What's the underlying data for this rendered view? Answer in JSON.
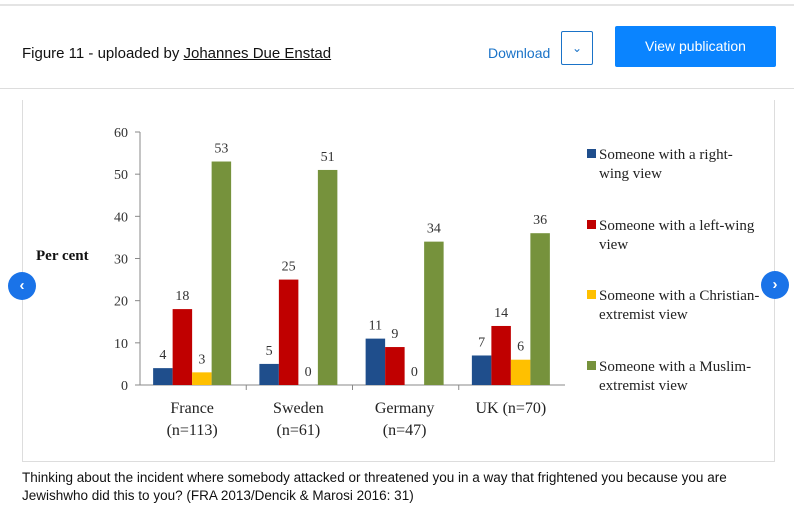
{
  "header": {
    "title_prefix": "Figure 11 - uploaded by ",
    "author": "Johannes Due Enstad",
    "download": "Download",
    "dropdown_icon": "chevron-down-icon",
    "view_publication": "View publication"
  },
  "nav": {
    "prev": "‹",
    "next": "›"
  },
  "caption": "Thinking about the incident where somebody attacked or threatened you in a way that frightened you because you are Jewishwho did this to you? (FRA 2013/Dencik & Marosi 2016: 31)",
  "chart_data": {
    "type": "bar",
    "title": "",
    "xlabel": "",
    "ylabel": "Per cent",
    "ylim": [
      0,
      60
    ],
    "yticks": [
      0,
      10,
      20,
      30,
      40,
      50,
      60
    ],
    "categories": [
      "France",
      "Sweden",
      "Germany",
      "UK (n=70)"
    ],
    "category_sub": [
      "(n=113)",
      "(n=61)",
      "(n=47)",
      ""
    ],
    "series": [
      {
        "name": "Someone with a right-wing view",
        "color": "#1f4e8c",
        "values": [
          4,
          5,
          11,
          7
        ]
      },
      {
        "name": "Someone with a left-wing view",
        "color": "#c00000",
        "values": [
          18,
          25,
          9,
          14
        ]
      },
      {
        "name": "Someone with a Christian-extremist view",
        "color": "#ffc000",
        "values": [
          3,
          0,
          0,
          6
        ]
      },
      {
        "name": "Someone with a Muslim-extremist view",
        "color": "#76923c",
        "values": [
          53,
          51,
          34,
          36
        ]
      }
    ],
    "legend_lines": [
      [
        "Someone with a right-",
        "wing view"
      ],
      [
        "Someone with a left-wing",
        "view"
      ],
      [
        "Someone with a Christian-",
        "extremist view"
      ],
      [
        "Someone with a Muslim-",
        "extremist view"
      ]
    ],
    "legend_position": "right",
    "grid": false
  }
}
